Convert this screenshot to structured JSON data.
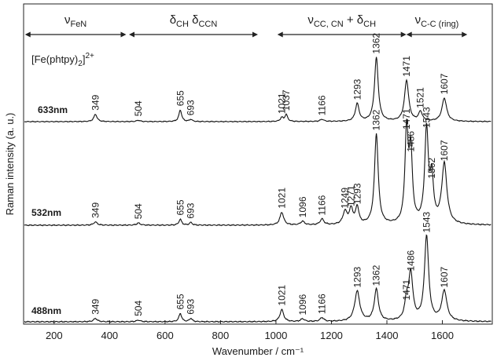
{
  "chart_data": {
    "type": "line",
    "title": "",
    "xlabel": "Wavenumber   / cm⁻¹",
    "ylabel": "Raman intensity   (a. u.)",
    "xlim": [
      90,
      1780
    ],
    "x_ticks": [
      200,
      400,
      600,
      800,
      1000,
      1200,
      1400,
      1600
    ],
    "x_tick_labels": [
      "200",
      "400",
      "600",
      "800",
      "1000",
      "1200",
      "1400",
      "1600"
    ],
    "compound": {
      "base": "[Fe(phtpy)",
      "sub": "2",
      "end": "]",
      "sup": "2+"
    },
    "regions": [
      {
        "id": "fen",
        "label": "ν",
        "sub": "FeN",
        "extra": "",
        "extra_sub": "",
        "range": [
          95,
          460
        ]
      },
      {
        "id": "dch",
        "label": "δ",
        "sub": "CH",
        "extra": "δ",
        "extra_sub": "CCN",
        "range": [
          470,
          935
        ]
      },
      {
        "id": "vcc",
        "label": "ν",
        "sub": "CC, CN",
        "extra": "+ δ",
        "extra_sub": "CH",
        "range": [
          1005,
          1470
        ]
      },
      {
        "id": "ring",
        "label": "ν",
        "sub": "C-C (ring)",
        "extra": "",
        "extra_sub": "",
        "range": [
          1470,
          1690
        ]
      }
    ],
    "series": [
      {
        "name": "633nm",
        "y_offset": 0.0,
        "peaks": [
          {
            "x": 349,
            "h": 0.17,
            "w": 7,
            "label": "349"
          },
          {
            "x": 504,
            "h": 0.03,
            "w": 8,
            "label": "504"
          },
          {
            "x": 655,
            "h": 0.27,
            "w": 6,
            "label": "655"
          },
          {
            "x": 693,
            "h": 0.05,
            "w": 6,
            "label": "693"
          },
          {
            "x": 1021,
            "h": 0.09,
            "w": 6,
            "label": "1021"
          },
          {
            "x": 1037,
            "h": 0.16,
            "w": 6,
            "label": "1037"
          },
          {
            "x": 1166,
            "h": 0.05,
            "w": 8,
            "label": "1166"
          },
          {
            "x": 1293,
            "h": 0.41,
            "w": 8,
            "label": "1293"
          },
          {
            "x": 1362,
            "h": 1.48,
            "w": 8,
            "label": "1362"
          },
          {
            "x": 1471,
            "h": 0.95,
            "w": 9,
            "label": "1471"
          },
          {
            "x": 1521,
            "h": 0.22,
            "w": 8,
            "label": "1521"
          },
          {
            "x": 1607,
            "h": 0.54,
            "w": 10,
            "label": "1607"
          }
        ]
      },
      {
        "name": "532nm",
        "y_offset": 0.0,
        "peaks": [
          {
            "x": 349,
            "h": 0.06,
            "w": 8,
            "label": "349"
          },
          {
            "x": 504,
            "h": 0.04,
            "w": 8,
            "label": "504"
          },
          {
            "x": 655,
            "h": 0.11,
            "w": 6,
            "label": "655"
          },
          {
            "x": 693,
            "h": 0.05,
            "w": 6,
            "label": "693"
          },
          {
            "x": 1021,
            "h": 0.24,
            "w": 8,
            "label": "1021"
          },
          {
            "x": 1096,
            "h": 0.07,
            "w": 8,
            "label": "1096"
          },
          {
            "x": 1166,
            "h": 0.11,
            "w": 8,
            "label": "1166"
          },
          {
            "x": 1249,
            "h": 0.24,
            "w": 9,
            "label": "1249"
          },
          {
            "x": 1271,
            "h": 0.28,
            "w": 8,
            "label": "1271"
          },
          {
            "x": 1293,
            "h": 0.32,
            "w": 7,
            "label": "1293"
          },
          {
            "x": 1362,
            "h": 1.7,
            "w": 8,
            "label": "1362"
          },
          {
            "x": 1471,
            "h": 1.72,
            "w": 7,
            "label": "1471"
          },
          {
            "x": 1486,
            "h": 1.3,
            "w": 7,
            "label": "1486"
          },
          {
            "x": 1543,
            "h": 1.75,
            "w": 8,
            "label": "1543"
          },
          {
            "x": 1562,
            "h": 0.8,
            "w": 7,
            "label": "1562"
          },
          {
            "x": 1607,
            "h": 1.13,
            "w": 11,
            "label": "1607"
          }
        ]
      },
      {
        "name": "488nm",
        "y_offset": 0.0,
        "peaks": [
          {
            "x": 349,
            "h": 0.06,
            "w": 8,
            "label": "349"
          },
          {
            "x": 504,
            "h": 0.03,
            "w": 8,
            "label": "504"
          },
          {
            "x": 655,
            "h": 0.15,
            "w": 6,
            "label": "655"
          },
          {
            "x": 693,
            "h": 0.06,
            "w": 6,
            "label": "693"
          },
          {
            "x": 1021,
            "h": 0.22,
            "w": 8,
            "label": "1021"
          },
          {
            "x": 1096,
            "h": 0.05,
            "w": 8,
            "label": "1096"
          },
          {
            "x": 1166,
            "h": 0.07,
            "w": 8,
            "label": "1166"
          },
          {
            "x": 1293,
            "h": 0.55,
            "w": 11,
            "label": "1293"
          },
          {
            "x": 1362,
            "h": 0.58,
            "w": 9,
            "label": "1362"
          },
          {
            "x": 1471,
            "h": 0.32,
            "w": 8,
            "label": "1471"
          },
          {
            "x": 1486,
            "h": 0.85,
            "w": 9,
            "label": "1486"
          },
          {
            "x": 1543,
            "h": 1.55,
            "w": 9,
            "label": "1543"
          },
          {
            "x": 1607,
            "h": 0.55,
            "w": 11,
            "label": "1607"
          }
        ]
      }
    ]
  }
}
